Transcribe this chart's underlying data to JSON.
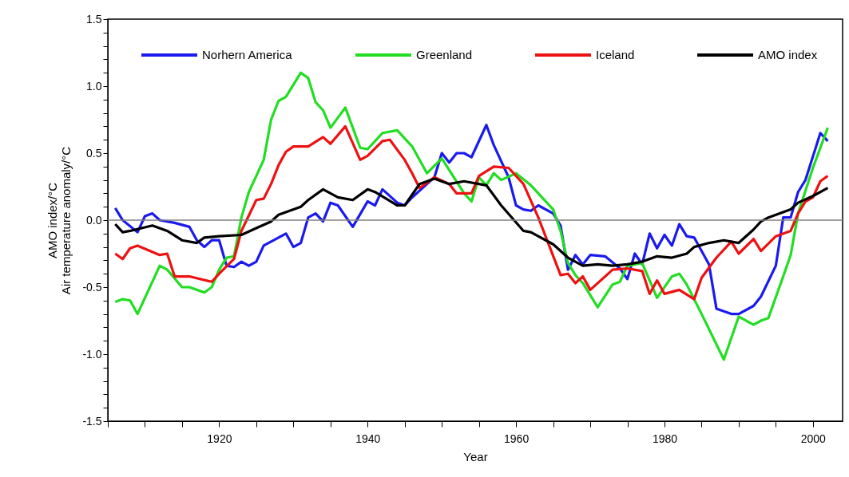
{
  "chart_data": {
    "type": "line",
    "xlabel": "Year",
    "ylabel": "AMO index/°C\nAir temperature anomaly/°C",
    "legend": "top",
    "grid": false,
    "line_style": "solid",
    "marker": "none",
    "xlim": [
      1905,
      2004
    ],
    "ylim": [
      -1.5,
      1.5
    ],
    "xticks": [
      {
        "value": 1905,
        "label": null
      },
      {
        "value": 1910,
        "label": null
      },
      {
        "value": 1915,
        "label": null
      },
      1920,
      {
        "value": 1925,
        "label": null
      },
      {
        "value": 1930,
        "label": null
      },
      {
        "value": 1935,
        "label": null
      },
      1940,
      {
        "value": 1945,
        "label": null
      },
      {
        "value": 1950,
        "label": null
      },
      {
        "value": 1955,
        "label": null
      },
      1960,
      {
        "value": 1965,
        "label": null
      },
      {
        "value": 1970,
        "label": null
      },
      {
        "value": 1975,
        "label": null
      },
      1980,
      {
        "value": 1985,
        "label": null
      },
      {
        "value": 1990,
        "label": null
      },
      {
        "value": 1995,
        "label": null
      },
      2000
    ],
    "yticks": [
      {
        "value": -1.5,
        "label": "-1.5"
      },
      {
        "value": -1.4,
        "label": null
      },
      {
        "value": -1.3,
        "label": null
      },
      {
        "value": -1.2,
        "label": null
      },
      {
        "value": -1.1,
        "label": null
      },
      {
        "value": -1,
        "label": "-1.0"
      },
      {
        "value": -0.9,
        "label": null
      },
      {
        "value": -0.8,
        "label": null
      },
      {
        "value": -0.7,
        "label": null
      },
      {
        "value": -0.6,
        "label": null
      },
      {
        "value": -0.5,
        "label": "-0.5"
      },
      {
        "value": -0.4,
        "label": null
      },
      {
        "value": -0.3,
        "label": null
      },
      {
        "value": -0.2,
        "label": null
      },
      {
        "value": -0.1,
        "label": null
      },
      {
        "value": 0,
        "label": "0.0"
      },
      {
        "value": 0.1,
        "label": null
      },
      {
        "value": 0.2,
        "label": null
      },
      {
        "value": 0.3,
        "label": null
      },
      {
        "value": 0.4,
        "label": null
      },
      {
        "value": 0.5,
        "label": "0.5"
      },
      {
        "value": 0.6,
        "label": null
      },
      {
        "value": 0.7,
        "label": null
      },
      {
        "value": 0.8,
        "label": null
      },
      {
        "value": 0.9,
        "label": null
      },
      {
        "value": 1,
        "label": "1.0"
      },
      {
        "value": 1.1,
        "label": null
      },
      {
        "value": 1.2,
        "label": null
      },
      {
        "value": 1.3,
        "label": null
      },
      {
        "value": 1.4,
        "label": null
      },
      {
        "value": 1.5,
        "label": "1.5"
      }
    ],
    "ref_lines": [
      {
        "axis": "y",
        "value": 0,
        "color": "#808080"
      }
    ],
    "series": [
      {
        "name": "Norhern America",
        "color": "#1a1aee",
        "x": [
          1906,
          1907,
          1909,
          1910,
          1911,
          1912,
          1914,
          1916,
          1917,
          1918,
          1919,
          1920,
          1921,
          1922,
          1923,
          1924,
          1925,
          1926,
          1928,
          1929,
          1930,
          1931,
          1932,
          1933,
          1934,
          1935,
          1936,
          1938,
          1940,
          1941,
          1942,
          1944,
          1945,
          1946,
          1948,
          1949,
          1950,
          1951,
          1952,
          1953,
          1954,
          1956,
          1957,
          1959,
          1960,
          1961,
          1962,
          1963,
          1965,
          1966,
          1967,
          1968,
          1969,
          1970,
          1972,
          1974,
          1975,
          1976,
          1977,
          1978,
          1979,
          1980,
          1981,
          1982,
          1983,
          1984,
          1986,
          1987,
          1989,
          1990,
          1992,
          1993,
          1995,
          1996,
          1997,
          1998,
          1999,
          2001,
          2002
        ],
        "values": [
          0.09,
          0.0,
          -0.09,
          0.03,
          0.05,
          0.0,
          -0.02,
          -0.05,
          -0.15,
          -0.2,
          -0.15,
          -0.15,
          -0.34,
          -0.35,
          -0.31,
          -0.34,
          -0.31,
          -0.19,
          -0.13,
          -0.1,
          -0.2,
          -0.17,
          0.02,
          0.05,
          -0.01,
          0.13,
          0.11,
          -0.05,
          0.14,
          0.11,
          0.23,
          0.13,
          0.11,
          0.17,
          0.27,
          0.32,
          0.5,
          0.43,
          0.5,
          0.5,
          0.47,
          0.71,
          0.56,
          0.32,
          0.11,
          0.08,
          0.07,
          0.11,
          0.05,
          -0.04,
          -0.37,
          -0.26,
          -0.33,
          -0.26,
          -0.27,
          -0.36,
          -0.44,
          -0.25,
          -0.33,
          -0.1,
          -0.21,
          -0.11,
          -0.19,
          -0.03,
          -0.12,
          -0.13,
          -0.33,
          -0.66,
          -0.7,
          -0.7,
          -0.64,
          -0.57,
          -0.34,
          0.02,
          0.02,
          0.21,
          0.3,
          0.65,
          0.59
        ]
      },
      {
        "name": "Greenland",
        "color": "#22dd22",
        "x": [
          1906,
          1907,
          1908,
          1909,
          1912,
          1913,
          1915,
          1916,
          1918,
          1919,
          1920,
          1921,
          1922,
          1923,
          1924,
          1925,
          1926,
          1927,
          1928,
          1929,
          1931,
          1932,
          1933,
          1934,
          1935,
          1937,
          1939,
          1940,
          1942,
          1944,
          1946,
          1948,
          1950,
          1953,
          1954,
          1955,
          1956,
          1957,
          1958,
          1960,
          1962,
          1965,
          1966,
          1967,
          1968,
          1969,
          1971,
          1973,
          1974,
          1975,
          1977,
          1979,
          1981,
          1982,
          1983,
          1985,
          1988,
          1990,
          1992,
          1993,
          1994,
          1996,
          1997,
          1998,
          2000,
          2002
        ],
        "values": [
          -0.61,
          -0.59,
          -0.6,
          -0.7,
          -0.34,
          -0.37,
          -0.5,
          -0.5,
          -0.54,
          -0.5,
          -0.37,
          -0.28,
          -0.27,
          0.02,
          0.21,
          0.33,
          0.45,
          0.75,
          0.89,
          0.92,
          1.1,
          1.06,
          0.88,
          0.82,
          0.69,
          0.84,
          0.54,
          0.53,
          0.65,
          0.67,
          0.55,
          0.35,
          0.46,
          0.2,
          0.14,
          0.32,
          0.26,
          0.35,
          0.3,
          0.35,
          0.26,
          0.08,
          -0.08,
          -0.32,
          -0.41,
          -0.47,
          -0.65,
          -0.48,
          -0.46,
          -0.34,
          -0.32,
          -0.58,
          -0.42,
          -0.4,
          -0.48,
          -0.7,
          -1.04,
          -0.72,
          -0.78,
          -0.75,
          -0.73,
          -0.42,
          -0.26,
          0.05,
          0.39,
          0.69
        ]
      },
      {
        "name": "Iceland",
        "color": "#ee1111",
        "x": [
          1906,
          1907,
          1908,
          1909,
          1912,
          1913,
          1914,
          1916,
          1919,
          1920,
          1922,
          1923,
          1925,
          1926,
          1927,
          1928,
          1929,
          1930,
          1932,
          1934,
          1935,
          1937,
          1939,
          1940,
          1942,
          1943,
          1945,
          1946,
          1947,
          1949,
          1951,
          1952,
          1954,
          1955,
          1957,
          1959,
          1961,
          1963,
          1966,
          1967,
          1968,
          1969,
          1970,
          1973,
          1975,
          1977,
          1978,
          1979,
          1980,
          1982,
          1984,
          1985,
          1987,
          1988,
          1989,
          1990,
          1992,
          1993,
          1995,
          1997,
          1998,
          1999,
          2000,
          2001,
          2002
        ],
        "values": [
          -0.25,
          -0.29,
          -0.21,
          -0.19,
          -0.26,
          -0.25,
          -0.42,
          -0.42,
          -0.46,
          -0.4,
          -0.29,
          -0.08,
          0.15,
          0.16,
          0.27,
          0.41,
          0.51,
          0.55,
          0.55,
          0.62,
          0.57,
          0.7,
          0.45,
          0.48,
          0.59,
          0.6,
          0.45,
          0.35,
          0.24,
          0.32,
          0.27,
          0.2,
          0.2,
          0.33,
          0.4,
          0.39,
          0.27,
          0.02,
          -0.41,
          -0.4,
          -0.47,
          -0.42,
          -0.52,
          -0.37,
          -0.36,
          -0.38,
          -0.55,
          -0.45,
          -0.55,
          -0.52,
          -0.59,
          -0.43,
          -0.28,
          -0.22,
          -0.16,
          -0.25,
          -0.14,
          -0.23,
          -0.12,
          -0.08,
          0.05,
          0.14,
          0.17,
          0.29,
          0.33
        ]
      },
      {
        "name": "AMO index",
        "color": "#000000",
        "x": [
          1906,
          1907,
          1908,
          1911,
          1913,
          1915,
          1917,
          1918,
          1920,
          1923,
          1925,
          1927,
          1928,
          1931,
          1932,
          1934,
          1936,
          1938,
          1940,
          1941,
          1944,
          1945,
          1947,
          1949,
          1951,
          1953,
          1956,
          1958,
          1961,
          1962,
          1965,
          1967,
          1969,
          1971,
          1973,
          1975,
          1977,
          1979,
          1981,
          1983,
          1984,
          1986,
          1988,
          1990,
          1992,
          1993,
          1994,
          1997,
          1998,
          2000,
          2002
        ],
        "values": [
          -0.03,
          -0.09,
          -0.08,
          -0.04,
          -0.08,
          -0.15,
          -0.17,
          -0.13,
          -0.12,
          -0.11,
          -0.06,
          -0.01,
          0.04,
          0.1,
          0.15,
          0.23,
          0.17,
          0.15,
          0.23,
          0.21,
          0.11,
          0.11,
          0.27,
          0.31,
          0.27,
          0.29,
          0.26,
          0.11,
          -0.08,
          -0.09,
          -0.18,
          -0.28,
          -0.34,
          -0.33,
          -0.34,
          -0.33,
          -0.31,
          -0.27,
          -0.28,
          -0.25,
          -0.2,
          -0.17,
          -0.15,
          -0.17,
          -0.07,
          -0.01,
          0.02,
          0.08,
          0.13,
          0.18,
          0.24
        ]
      }
    ]
  }
}
